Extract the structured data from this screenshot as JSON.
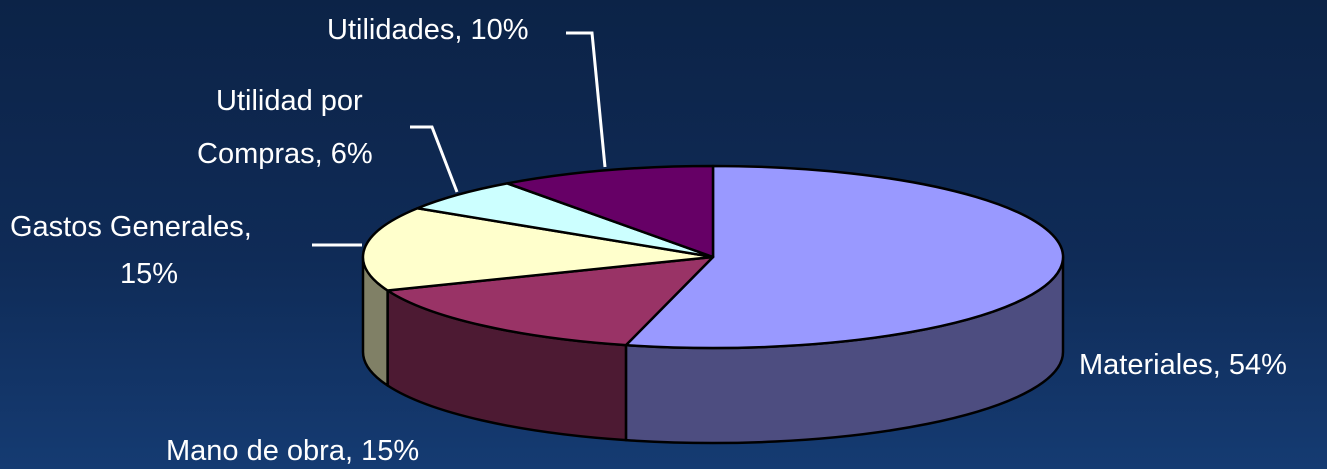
{
  "chart_data": {
    "type": "pie",
    "variant": "3d",
    "slices": [
      {
        "label": "Materiales",
        "value": 54,
        "display": "Materiales, 54%",
        "color": "#9999ff",
        "side_color": "#4d4d80"
      },
      {
        "label": "Mano de obra",
        "value": 15,
        "display": "Mano de obra, 15%",
        "color": "#993366",
        "side_color": "#4d1a33"
      },
      {
        "label": "Gastos Generales",
        "value": 15,
        "display": "Gastos Generales, 15%",
        "color": "#ffffcc",
        "side_color": "#808066"
      },
      {
        "label": "Utilidad por Compras",
        "value": 6,
        "display": "Utilidad por Compras, 6%",
        "color": "#ccffff",
        "side_color": "#668080"
      },
      {
        "label": "Utilidades",
        "value": 10,
        "display": "Utilidades, 10%",
        "color": "#660066",
        "side_color": "#330033"
      }
    ],
    "title": "",
    "legend": "none",
    "data_labels": "category and percent"
  },
  "labels": {
    "materiales": "Materiales, 54%",
    "mano_de_obra": "Mano de obra, 15%",
    "gastos_line1": "Gastos Generales,",
    "gastos_line2": "15%",
    "compras_line1": "Utilidad por",
    "compras_line2": "Compras, 6%",
    "utilidades": "Utilidades, 10%"
  }
}
